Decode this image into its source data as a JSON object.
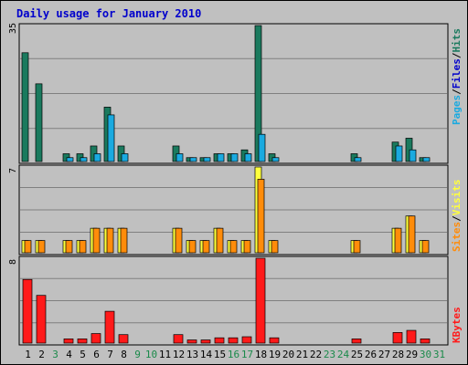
{
  "title": "Daily usage for January 2010",
  "colors": {
    "title": "#0000cc",
    "background": "#c0c0c0",
    "panel": "#c0c0c0",
    "grid": "#808080",
    "hits": "#1a7a5e",
    "files": "#1aaae0",
    "pages": "#1aaae0",
    "visits": "#ffff3c",
    "sites": "#ff8c0a",
    "kbytes": "#ff1a1a",
    "weekend_label": "#1a8a4a",
    "weekday_label": "#000000"
  },
  "labels": {
    "top_axis_max": "35",
    "mid_axis_max": "7",
    "bot_axis_max": "8",
    "legend_top": {
      "pages": "Pages",
      "sep1": "/",
      "files": "Files",
      "sep2": "/",
      "hits": "Hits"
    },
    "legend_mid": {
      "sites": "Sites",
      "sep": "/",
      "visits": "Visits"
    },
    "legend_bot": {
      "kbytes": "KBytes"
    }
  },
  "chart_data": {
    "type": "bar",
    "title": "Daily usage for January 2010",
    "categories": [
      "1",
      "2",
      "3",
      "4",
      "5",
      "6",
      "7",
      "8",
      "9",
      "10",
      "11",
      "12",
      "13",
      "14",
      "15",
      "16",
      "17",
      "18",
      "19",
      "20",
      "21",
      "22",
      "23",
      "24",
      "25",
      "26",
      "27",
      "28",
      "29",
      "30",
      "31"
    ],
    "weekend_days": [
      "3",
      "9",
      "10",
      "16",
      "17",
      "23",
      "24",
      "30",
      "31"
    ],
    "panels": [
      {
        "name": "hits-files-pages",
        "ylim": [
          0,
          35
        ],
        "series": [
          {
            "name": "Hits",
            "values": [
              28,
              20,
              0,
              2,
              2,
              4,
              14,
              4,
              0,
              0,
              0,
              4,
              1,
              1,
              2,
              2,
              3,
              35,
              2,
              0,
              0,
              0,
              0,
              0,
              2,
              0,
              0,
              5,
              6,
              1,
              0
            ]
          },
          {
            "name": "Files",
            "values": [
              0,
              0,
              0,
              1,
              1,
              2,
              12,
              2,
              0,
              0,
              0,
              2,
              1,
              1,
              2,
              2,
              2,
              7,
              1,
              0,
              0,
              0,
              0,
              0,
              1,
              0,
              0,
              4,
              3,
              1,
              0
            ]
          }
        ]
      },
      {
        "name": "visits-sites",
        "ylim": [
          0,
          7
        ],
        "series": [
          {
            "name": "Visits",
            "values": [
              1,
              1,
              0,
              1,
              1,
              2,
              2,
              2,
              0,
              0,
              0,
              2,
              1,
              1,
              2,
              1,
              1,
              7,
              1,
              0,
              0,
              0,
              0,
              0,
              1,
              0,
              0,
              2,
              3,
              1,
              0
            ]
          },
          {
            "name": "Sites",
            "values": [
              1,
              1,
              0,
              1,
              1,
              2,
              2,
              2,
              0,
              0,
              0,
              2,
              1,
              1,
              2,
              1,
              1,
              6,
              1,
              0,
              0,
              0,
              0,
              0,
              1,
              0,
              0,
              2,
              3,
              1,
              0
            ]
          }
        ]
      },
      {
        "name": "kbytes",
        "ylim": [
          0,
          8
        ],
        "series": [
          {
            "name": "KBytes",
            "values": [
              6,
              4.5,
              0,
              0.4,
              0.4,
              0.9,
              3,
              0.8,
              0,
              0,
              0,
              0.8,
              0.3,
              0.3,
              0.5,
              0.5,
              0.6,
              8,
              0.5,
              0,
              0,
              0,
              0,
              0,
              0.4,
              0,
              0,
              1,
              1.2,
              0.4,
              0
            ]
          }
        ]
      }
    ]
  }
}
